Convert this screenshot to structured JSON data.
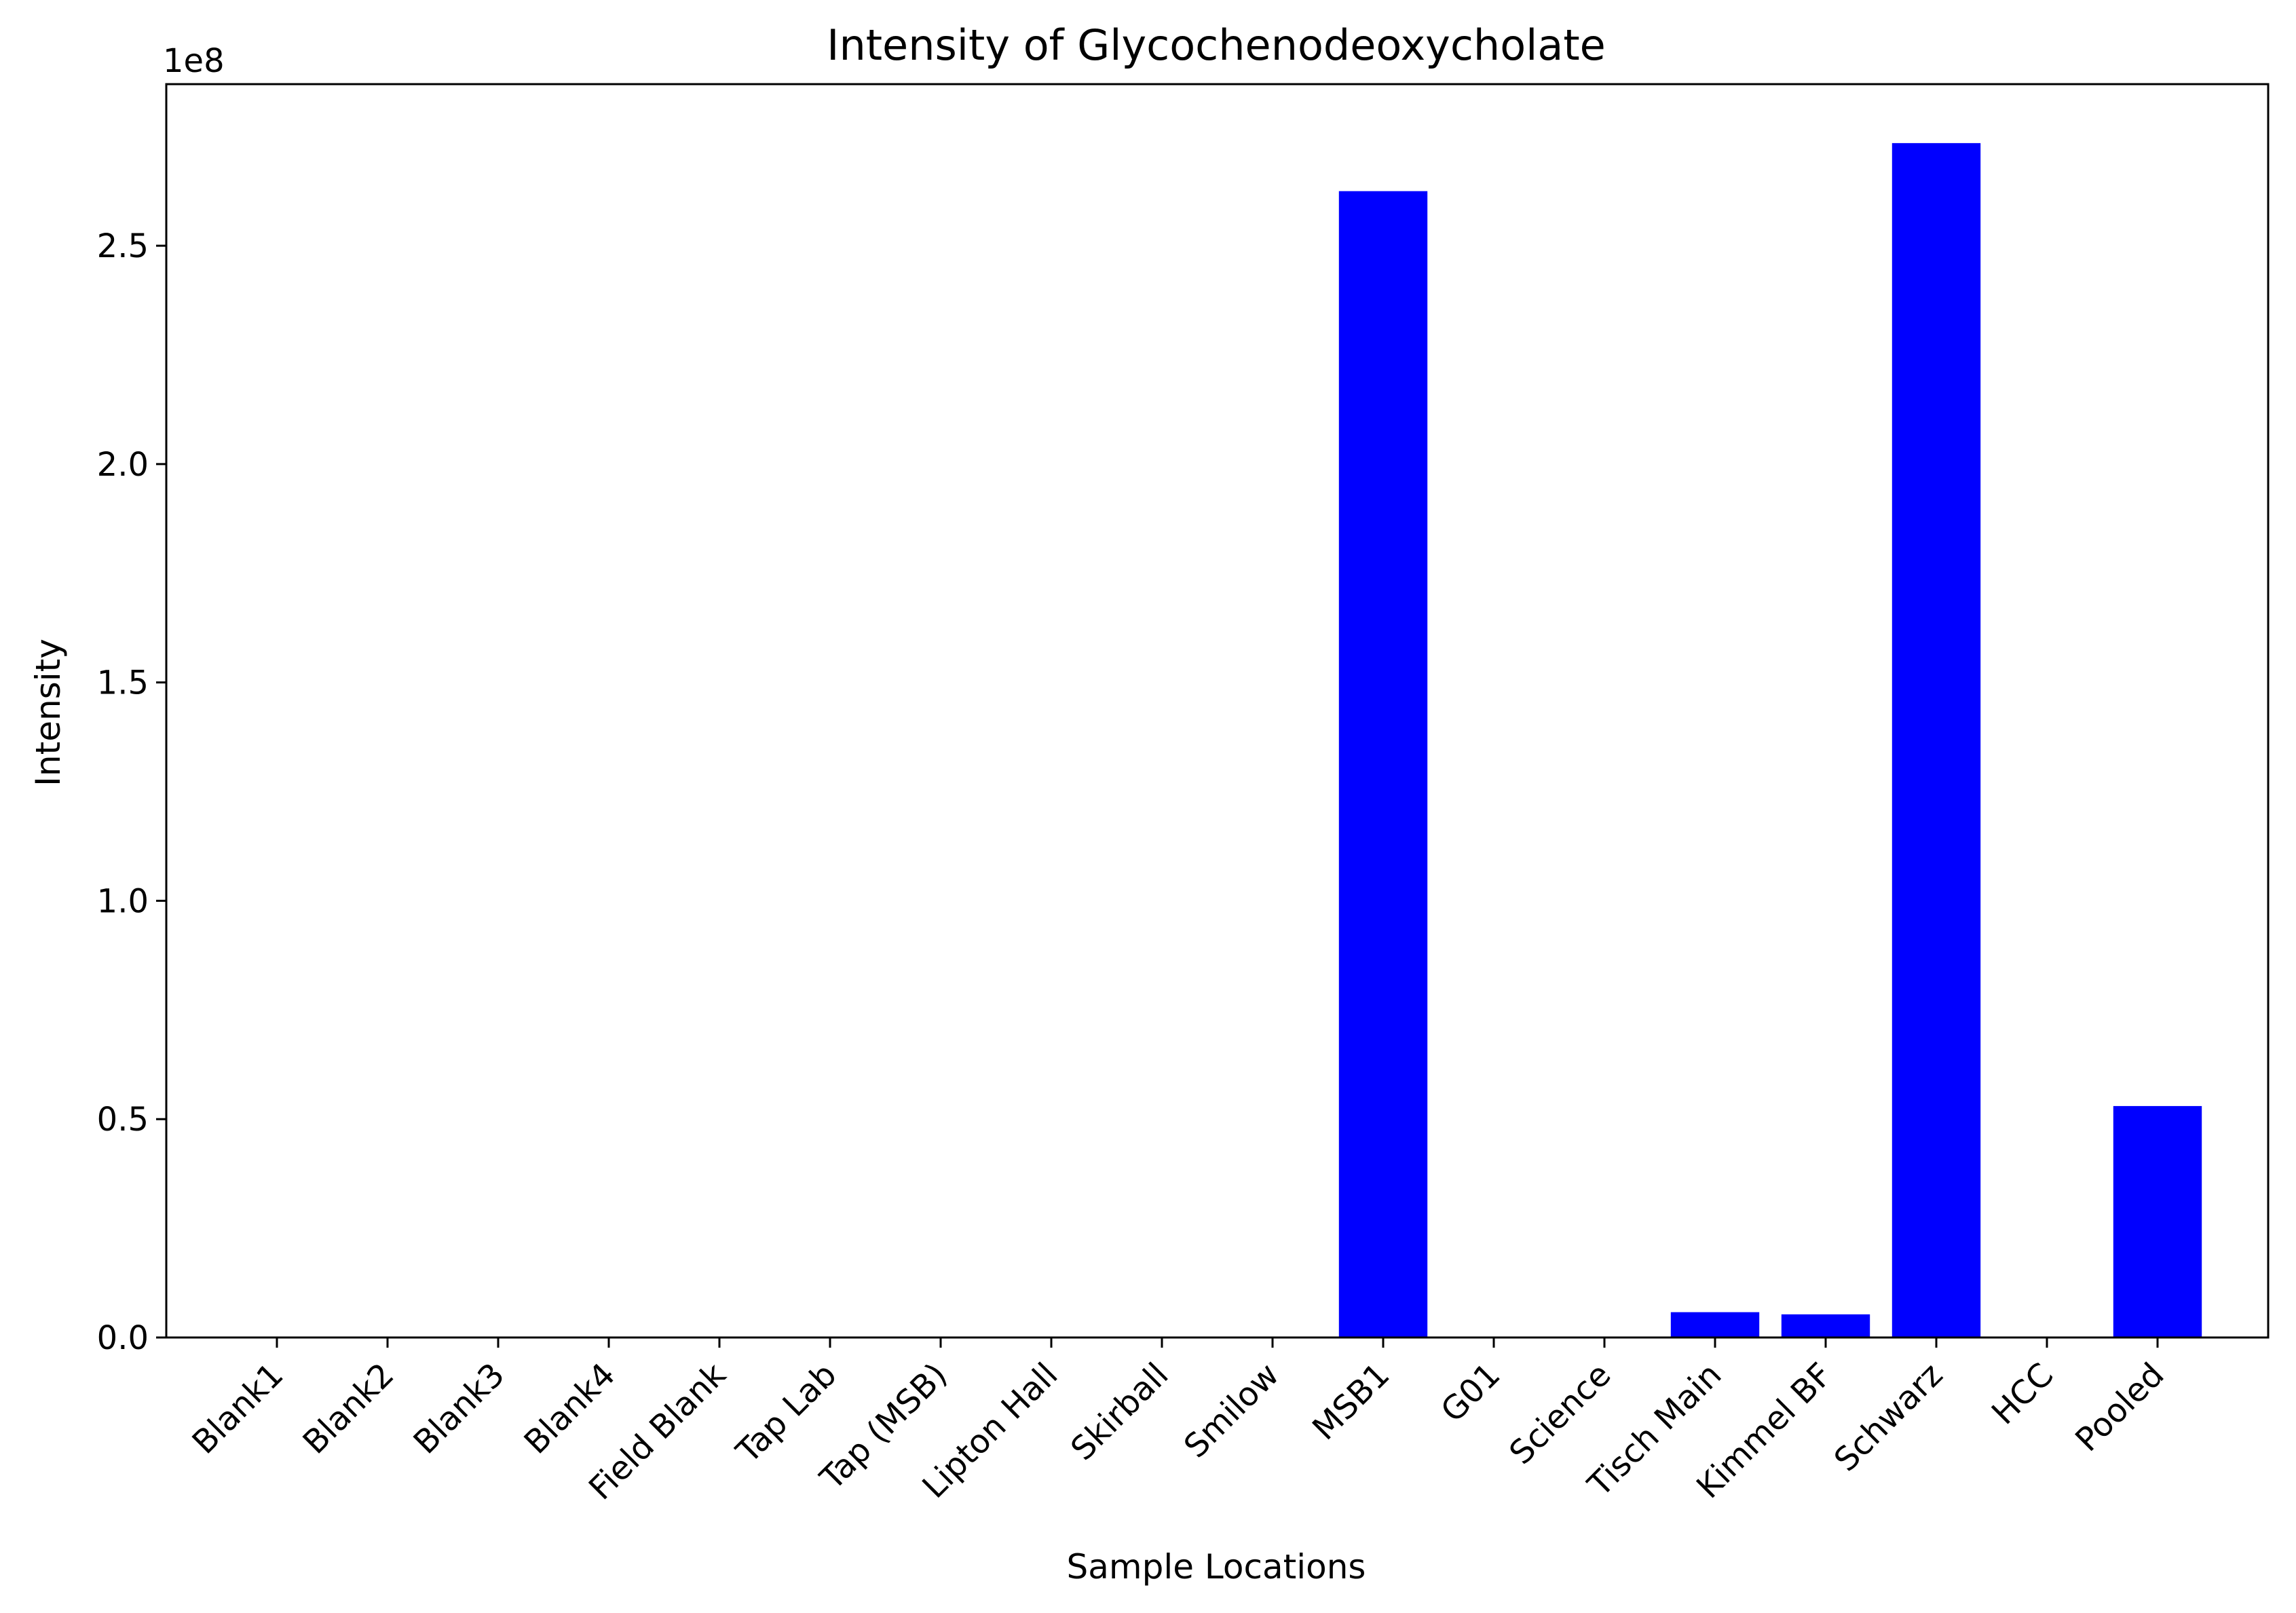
{
  "chart_data": {
    "type": "bar",
    "title": "Intensity of Glycochenodeoxycholate",
    "xlabel": "Sample Locations",
    "ylabel": "Intensity",
    "y_offset_label": "1e8",
    "y_tick_values": [
      0.0,
      0.5,
      1.0,
      1.5,
      2.0,
      2.5
    ],
    "y_tick_labels": [
      "0.0",
      "0.5",
      "1.0",
      "1.5",
      "2.0",
      "2.5"
    ],
    "ylim": [
      0,
      287000000
    ],
    "grid": false,
    "bar_color": "#0000ff",
    "categories": [
      "Blank1",
      "Blank2",
      "Blank3",
      "Blank4",
      "Field Blank",
      "Tap Lab",
      "Tap (MSB)",
      "Lipton Hall",
      "Skirball",
      "Smilow",
      "MSB1",
      "G01",
      "Science",
      "Tisch Main",
      "Kimmel BF",
      "Schwarz",
      "HCC",
      "Pooled"
    ],
    "values": [
      0,
      0,
      0,
      0,
      0,
      0,
      0,
      0,
      0,
      0,
      262500000,
      0,
      0,
      5800000,
      5300000,
      273500000,
      0,
      53000000
    ]
  }
}
